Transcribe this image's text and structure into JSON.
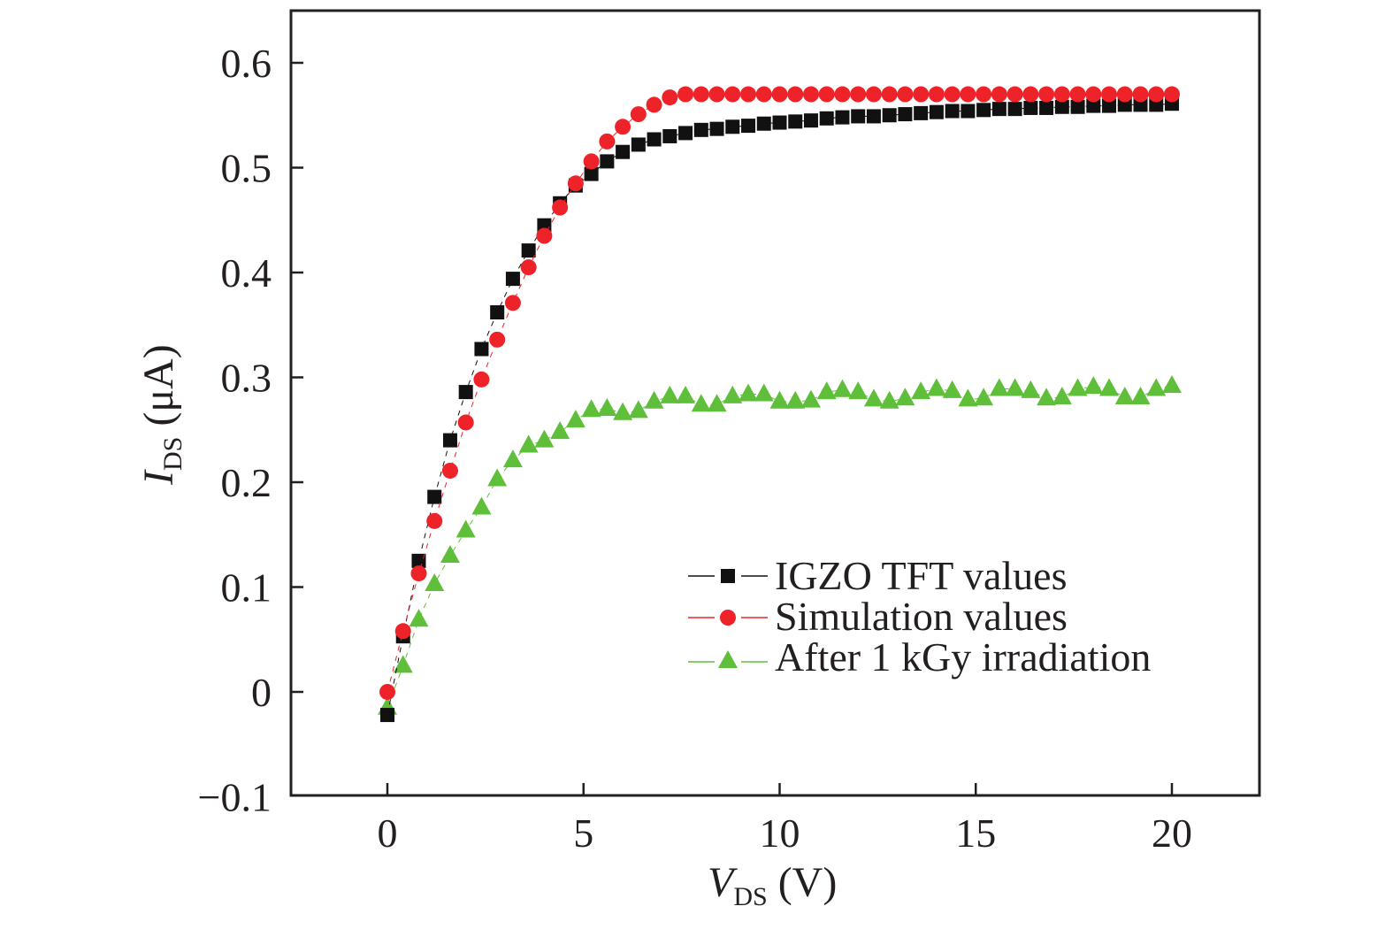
{
  "chart_data": {
    "type": "scatter",
    "title": "",
    "xlabel": {
      "main": "V",
      "sub": "DS",
      "unit": " (V)"
    },
    "ylabel": {
      "main": "I",
      "sub": "DS",
      "unit": " (μA)"
    },
    "xlim": [
      -2.5,
      22.5
    ],
    "ylim": [
      -0.1,
      0.65
    ],
    "x_ticks": [
      0,
      5,
      10,
      15,
      20
    ],
    "x_tick_labels": [
      "0",
      "5",
      "10",
      "15",
      "20"
    ],
    "y_ticks": [
      -0.1,
      0,
      0.1,
      0.2,
      0.3,
      0.4,
      0.5,
      0.6
    ],
    "y_tick_labels": [
      "−0.1",
      "0",
      "0.1",
      "0.2",
      "0.3",
      "0.4",
      "0.5",
      "0.6"
    ],
    "grid": false,
    "legend_position": "lower-right",
    "x": [
      0,
      0.4,
      0.8,
      1.2,
      1.6,
      2.0,
      2.4,
      2.8,
      3.2,
      3.6,
      4.0,
      4.4,
      4.8,
      5.2,
      5.6,
      6.0,
      6.4,
      6.8,
      7.2,
      7.6,
      8.0,
      8.4,
      8.8,
      9.2,
      9.6,
      10.0,
      10.4,
      10.8,
      11.2,
      11.6,
      12.0,
      12.4,
      12.8,
      13.2,
      13.6,
      14.0,
      14.4,
      14.8,
      15.2,
      15.6,
      16.0,
      16.4,
      16.8,
      17.2,
      17.6,
      18.0,
      18.4,
      18.8,
      19.2,
      19.6,
      20.0
    ],
    "series": [
      {
        "name": "IGZO TFT values",
        "marker": "square",
        "color": "#111111",
        "values": [
          -0.022,
          0.053,
          0.125,
          0.186,
          0.24,
          0.286,
          0.327,
          0.362,
          0.394,
          0.421,
          0.445,
          0.466,
          0.483,
          0.494,
          0.506,
          0.515,
          0.522,
          0.527,
          0.53,
          0.533,
          0.536,
          0.537,
          0.539,
          0.54,
          0.542,
          0.543,
          0.544,
          0.545,
          0.547,
          0.548,
          0.549,
          0.549,
          0.55,
          0.551,
          0.552,
          0.553,
          0.554,
          0.554,
          0.555,
          0.556,
          0.556,
          0.557,
          0.557,
          0.558,
          0.558,
          0.559,
          0.559,
          0.56,
          0.56,
          0.56,
          0.561
        ]
      },
      {
        "name": "Simulation values",
        "marker": "circle",
        "color": "#ee2329",
        "values": [
          0.0,
          0.058,
          0.113,
          0.163,
          0.211,
          0.257,
          0.298,
          0.336,
          0.371,
          0.405,
          0.435,
          0.462,
          0.485,
          0.506,
          0.525,
          0.539,
          0.551,
          0.56,
          0.567,
          0.57,
          0.57,
          0.57,
          0.57,
          0.57,
          0.57,
          0.57,
          0.57,
          0.57,
          0.57,
          0.57,
          0.57,
          0.57,
          0.57,
          0.57,
          0.57,
          0.57,
          0.57,
          0.57,
          0.57,
          0.57,
          0.57,
          0.57,
          0.57,
          0.57,
          0.57,
          0.57,
          0.57,
          0.57,
          0.57,
          0.57,
          0.57
        ]
      },
      {
        "name": "After 1 kGy irradiation",
        "marker": "triangle",
        "color": "#5fbf3a",
        "values": [
          -0.015,
          0.025,
          0.069,
          0.103,
          0.13,
          0.154,
          0.176,
          0.203,
          0.221,
          0.235,
          0.24,
          0.248,
          0.259,
          0.269,
          0.27,
          0.266,
          0.268,
          0.277,
          0.282,
          0.282,
          0.274,
          0.274,
          0.282,
          0.284,
          0.284,
          0.277,
          0.277,
          0.278,
          0.286,
          0.288,
          0.286,
          0.279,
          0.277,
          0.28,
          0.286,
          0.289,
          0.287,
          0.279,
          0.28,
          0.289,
          0.289,
          0.287,
          0.28,
          0.281,
          0.289,
          0.291,
          0.289,
          0.281,
          0.281,
          0.289,
          0.292
        ]
      }
    ]
  }
}
